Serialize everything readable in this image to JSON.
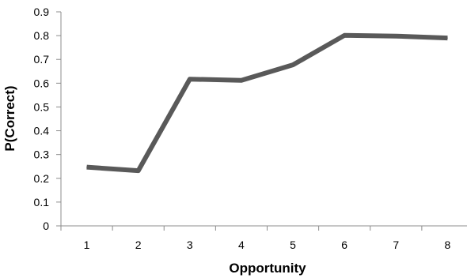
{
  "chart_data": {
    "type": "line",
    "title": "",
    "xlabel": "Opportunity",
    "ylabel": "P(Correct)",
    "categories": [
      "1",
      "2",
      "3",
      "4",
      "5",
      "6",
      "7",
      "8"
    ],
    "series": [
      {
        "values": [
          0.247,
          0.232,
          0.617,
          0.612,
          0.677,
          0.801,
          0.798,
          0.79
        ]
      }
    ],
    "ylim": [
      0,
      0.9
    ],
    "yticks": [
      "0",
      "0.1",
      "0.2",
      "0.3",
      "0.4",
      "0.5",
      "0.6",
      "0.7",
      "0.8",
      "0.9"
    ],
    "grid": false,
    "legend": "none",
    "line_color": "#595959",
    "axis_color": "#8c8c8c"
  }
}
